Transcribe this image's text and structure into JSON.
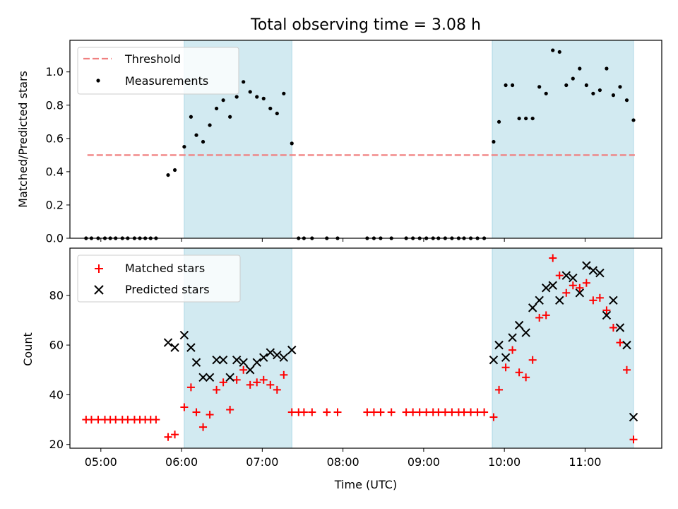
{
  "title": "Total observing time = 3.08 h",
  "colors": {
    "threshold": "#f08080",
    "shade": "#add8e6",
    "measurement": "#000000",
    "matched": "#ff0000",
    "predicted": "#000000"
  },
  "chart_data": [
    {
      "type": "scatter",
      "ylabel": "Matched/Predicted stars",
      "xlim": [
        "04:37",
        "11:57"
      ],
      "ylim": [
        0,
        1.19
      ],
      "y_ticks": [
        0.0,
        0.2,
        0.4,
        0.6,
        0.8,
        1.0
      ],
      "y_tick_labels": [
        "0.0",
        "0.2",
        "0.4",
        "0.6",
        "0.8",
        "1.0"
      ],
      "x_ticks": [
        "05:00",
        "06:00",
        "07:00",
        "08:00",
        "09:00",
        "10:00",
        "11:00"
      ],
      "threshold": {
        "name": "Threshold",
        "value": 0.5,
        "x_range": [
          "04:50",
          "11:37"
        ]
      },
      "shaded_intervals": [
        [
          "06:02",
          "07:22"
        ],
        [
          "09:51",
          "11:36"
        ]
      ],
      "legend_position": "upper left",
      "series": [
        {
          "name": "Measurements",
          "marker": "dot",
          "x": [
            "04:49",
            "04:53",
            "04:58",
            "05:03",
            "05:07",
            "05:11",
            "05:16",
            "05:20",
            "05:25",
            "05:29",
            "05:33",
            "05:37",
            "05:41",
            "05:50",
            "05:55",
            "06:02",
            "06:07",
            "06:11",
            "06:16",
            "06:21",
            "06:26",
            "06:31",
            "06:36",
            "06:41",
            "06:46",
            "06:51",
            "06:56",
            "07:01",
            "07:06",
            "07:11",
            "07:16",
            "07:22",
            "07:27",
            "07:31",
            "07:37",
            "07:48",
            "07:56",
            "08:18",
            "08:23",
            "08:28",
            "08:36",
            "08:47",
            "08:52",
            "08:57",
            "09:02",
            "09:07",
            "09:11",
            "09:16",
            "09:21",
            "09:26",
            "09:30",
            "09:35",
            "09:40",
            "09:45",
            "09:52",
            "09:56",
            "10:01",
            "10:06",
            "10:11",
            "10:16",
            "10:21",
            "10:26",
            "10:31",
            "10:36",
            "10:41",
            "10:46",
            "10:51",
            "10:56",
            "11:01",
            "11:06",
            "11:11",
            "11:16",
            "11:21",
            "11:26",
            "11:31",
            "11:36"
          ],
          "y": [
            0.0,
            0.0,
            0.0,
            0.0,
            0.0,
            0.0,
            0.0,
            0.0,
            0.0,
            0.0,
            0.0,
            0.0,
            0.0,
            0.38,
            0.41,
            0.55,
            0.73,
            0.62,
            0.58,
            0.68,
            0.78,
            0.83,
            0.73,
            0.85,
            0.94,
            0.88,
            0.85,
            0.84,
            0.78,
            0.75,
            0.87,
            0.57,
            0.0,
            0.0,
            0.0,
            0.0,
            0.0,
            0.0,
            0.0,
            0.0,
            0.0,
            0.0,
            0.0,
            0.0,
            0.0,
            0.0,
            0.0,
            0.0,
            0.0,
            0.0,
            0.0,
            0.0,
            0.0,
            0.0,
            0.58,
            0.7,
            0.92,
            0.92,
            0.72,
            0.72,
            0.72,
            0.91,
            0.87,
            1.13,
            1.12,
            0.92,
            0.96,
            1.02,
            0.92,
            0.87,
            0.89,
            1.02,
            0.86,
            0.91,
            0.83,
            0.71
          ]
        }
      ]
    },
    {
      "type": "scatter",
      "xlabel": "Time (UTC)",
      "ylabel": "Count",
      "xlim": [
        "04:37",
        "11:57"
      ],
      "ylim": [
        18.5,
        99
      ],
      "y_ticks": [
        20,
        40,
        60,
        80
      ],
      "y_tick_labels": [
        "20",
        "40",
        "60",
        "80"
      ],
      "x_ticks": [
        "05:00",
        "06:00",
        "07:00",
        "08:00",
        "09:00",
        "10:00",
        "11:00"
      ],
      "shaded_intervals": [
        [
          "06:02",
          "07:22"
        ],
        [
          "09:51",
          "11:36"
        ]
      ],
      "legend_position": "upper left",
      "series": [
        {
          "name": "Matched stars",
          "marker": "plus",
          "x": [
            "04:49",
            "04:53",
            "04:58",
            "05:03",
            "05:07",
            "05:11",
            "05:16",
            "05:20",
            "05:25",
            "05:29",
            "05:33",
            "05:37",
            "05:41",
            "05:50",
            "05:55",
            "06:02",
            "06:07",
            "06:11",
            "06:16",
            "06:21",
            "06:26",
            "06:31",
            "06:36",
            "06:41",
            "06:46",
            "06:51",
            "06:56",
            "07:01",
            "07:06",
            "07:11",
            "07:16",
            "07:22",
            "07:27",
            "07:31",
            "07:37",
            "07:48",
            "07:56",
            "08:18",
            "08:23",
            "08:28",
            "08:36",
            "08:47",
            "08:52",
            "08:57",
            "09:02",
            "09:07",
            "09:11",
            "09:16",
            "09:21",
            "09:26",
            "09:30",
            "09:35",
            "09:40",
            "09:45",
            "09:52",
            "09:56",
            "10:01",
            "10:06",
            "10:11",
            "10:16",
            "10:21",
            "10:26",
            "10:31",
            "10:36",
            "10:41",
            "10:46",
            "10:51",
            "10:56",
            "11:01",
            "11:06",
            "11:11",
            "11:16",
            "11:21",
            "11:26",
            "11:31",
            "11:36"
          ],
          "y": [
            30,
            30,
            30,
            30,
            30,
            30,
            30,
            30,
            30,
            30,
            30,
            30,
            30,
            23,
            24,
            35,
            43,
            33,
            27,
            32,
            42,
            45,
            34,
            46,
            50,
            44,
            45,
            46,
            44,
            42,
            48,
            33,
            33,
            33,
            33,
            33,
            33,
            33,
            33,
            33,
            33,
            33,
            33,
            33,
            33,
            33,
            33,
            33,
            33,
            33,
            33,
            33,
            33,
            33,
            31,
            42,
            51,
            58,
            49,
            47,
            54,
            71,
            72,
            95,
            88,
            81,
            84,
            83,
            85,
            78,
            79,
            74,
            67,
            61,
            50,
            22
          ]
        },
        {
          "name": "Predicted stars",
          "marker": "x",
          "x": [
            "05:50",
            "05:55",
            "06:02",
            "06:07",
            "06:11",
            "06:16",
            "06:21",
            "06:26",
            "06:31",
            "06:36",
            "06:41",
            "06:46",
            "06:51",
            "06:56",
            "07:01",
            "07:06",
            "07:11",
            "07:16",
            "07:22",
            "09:52",
            "09:56",
            "10:01",
            "10:06",
            "10:11",
            "10:16",
            "10:21",
            "10:26",
            "10:31",
            "10:36",
            "10:41",
            "10:46",
            "10:51",
            "10:56",
            "11:01",
            "11:06",
            "11:11",
            "11:16",
            "11:21",
            "11:26",
            "11:31",
            "11:36"
          ],
          "y": [
            61,
            59,
            64,
            59,
            53,
            47,
            47,
            54,
            54,
            47,
            54,
            53,
            50,
            53,
            55,
            57,
            56,
            55,
            58,
            54,
            60,
            55,
            63,
            68,
            65,
            75,
            78,
            83,
            84,
            78,
            88,
            87,
            81,
            92,
            90,
            89,
            72,
            78,
            67,
            60,
            31
          ]
        }
      ]
    }
  ]
}
